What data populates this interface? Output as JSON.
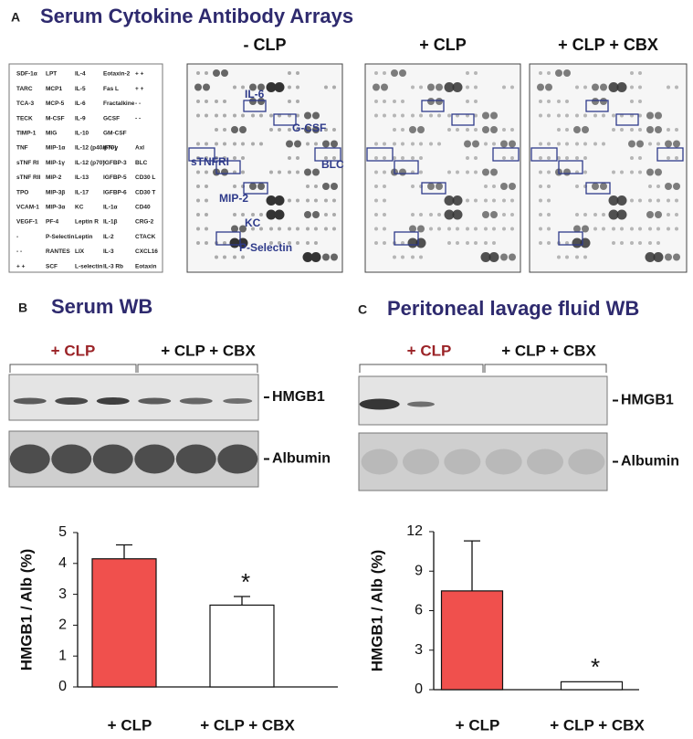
{
  "panel_a": {
    "letter": "A",
    "title": "Serum Cytokine Antibody Arrays",
    "legend_rows": [
      [
        "SDF-1α",
        "LPT",
        "IL-4",
        "Eotaxin-2",
        "+ +"
      ],
      [
        "TARC",
        "MCP1",
        "IL-5",
        "Fas L",
        "+ +"
      ],
      [
        "TCA-3",
        "MCP-5",
        "IL-6",
        "Fractalkine",
        "- -"
      ],
      [
        "TECK",
        "M-CSF",
        "IL-9",
        "GCSF",
        "- -"
      ],
      [
        "TIMP-1",
        "MIG",
        "IL-10",
        "GM-CSF",
        null
      ],
      [
        "TNF",
        "MIP-1α",
        "IL-12 (p40/p70)",
        "IFN-γ",
        "Axl"
      ],
      [
        "sTNF RI",
        "MIP-1γ",
        "IL-12 (p70)",
        "IGFBP-3",
        "BLC"
      ],
      [
        "sTNF RII",
        "MIP-2",
        "IL-13",
        "IGFBP-5",
        "CD30 L"
      ],
      [
        "TPO",
        "MIP-3β",
        "IL-17",
        "IGFBP-6",
        "CD30 T"
      ],
      [
        "VCAM-1",
        "MIP-3α",
        "KC",
        "IL-1α",
        "CD40"
      ],
      [
        "VEGF-1",
        "PF-4",
        "Leptin R",
        "IL-1β",
        "CRG-2"
      ],
      [
        "-",
        "P-Selectin",
        "Leptin",
        "IL-2",
        "CTACK"
      ],
      [
        "- -",
        "RANTES",
        "LIX",
        "IL-3",
        "CXCL16"
      ],
      [
        "+ +",
        "SCF",
        "L-selectin",
        "IL-3 Rb",
        "Eotaxin"
      ]
    ],
    "arrays": [
      {
        "label": "- CLP",
        "annotations": [
          "IL-6",
          "G-CSF",
          "sTNFRI",
          "BLC",
          "MIP-2",
          "KC",
          "P-Selectin"
        ]
      },
      {
        "label": "+ CLP"
      },
      {
        "label": "+ CLP + CBX"
      }
    ]
  },
  "panel_b": {
    "letter": "B",
    "title": "Serum WB",
    "groups": [
      "+ CLP",
      "+ CLP + CBX"
    ],
    "bands": [
      "HMGB1",
      "Albumin"
    ]
  },
  "panel_c": {
    "letter": "C",
    "title": "Peritoneal lavage fluid WB",
    "groups": [
      "+ CLP",
      "+ CLP + CBX"
    ],
    "bands": [
      "HMGB1",
      "Albumin"
    ]
  },
  "chart_data": [
    {
      "type": "bar",
      "ylabel": "HMGB1 / Alb  (%)",
      "categories": [
        "+ CLP",
        "+ CLP + CBX"
      ],
      "values": [
        4.15,
        2.65
      ],
      "errors": [
        0.45,
        0.28
      ],
      "colors": [
        "#f0504d",
        "#ffffff"
      ],
      "ylim": [
        0,
        5
      ],
      "yticks": [
        0,
        1,
        2,
        3,
        4,
        5
      ],
      "annotation": "*"
    },
    {
      "type": "bar",
      "ylabel": "HMGB1 / Alb  (%)",
      "categories": [
        "+ CLP",
        "+ CLP + CBX"
      ],
      "values": [
        7.5,
        0.6
      ],
      "errors": [
        3.8,
        null
      ],
      "colors": [
        "#f0504d",
        "#ffffff"
      ],
      "ylim": [
        0,
        12
      ],
      "yticks": [
        0,
        3,
        6,
        9,
        12
      ],
      "annotation": "*"
    }
  ]
}
